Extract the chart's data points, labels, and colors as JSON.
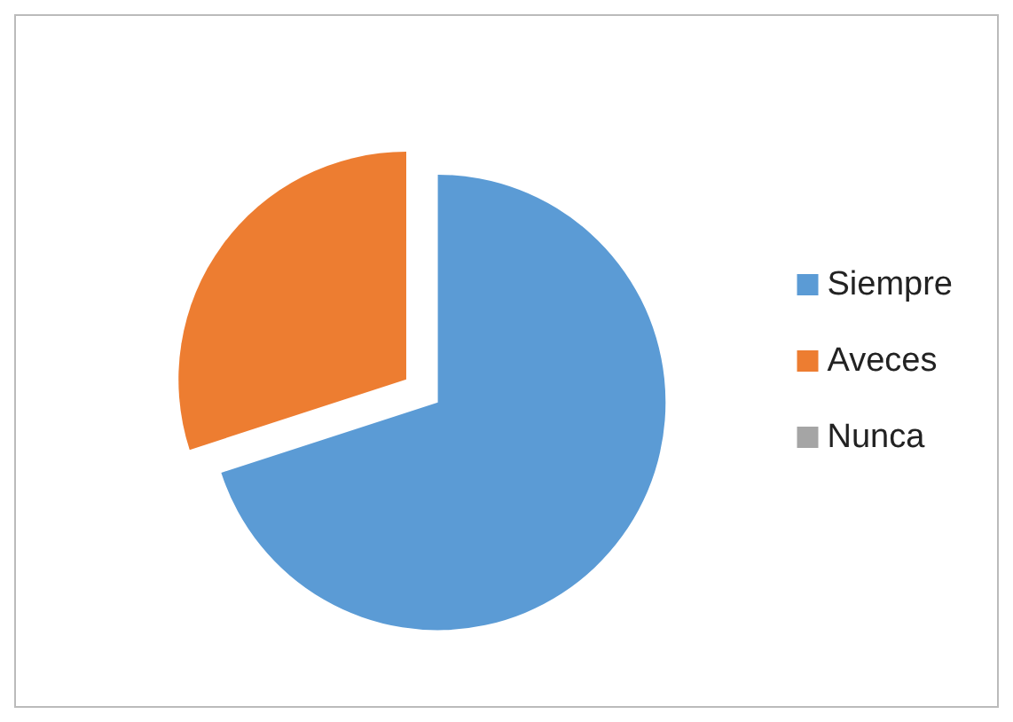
{
  "chart_data": {
    "type": "pie",
    "categories": [
      "Siempre",
      "Aveces",
      "Nunca"
    ],
    "values": [
      70,
      30,
      0
    ],
    "colors": [
      "#5b9bd5",
      "#ed7d31",
      "#a5a5a5"
    ],
    "legend": "right"
  }
}
